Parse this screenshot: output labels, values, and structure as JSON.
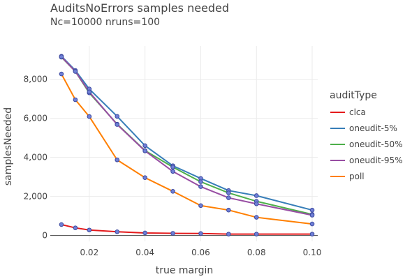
{
  "chart_data": {
    "type": "line",
    "title": "AuditsNoErrors samples needed",
    "subtitle": "Nc=10000 nruns=100",
    "xlabel": "true margin",
    "ylabel": "samplesNeeded",
    "xlim": [
      0.006,
      0.102
    ],
    "ylim": [
      -300,
      9700
    ],
    "x_ticks": [
      0.02,
      0.04,
      0.06,
      0.08,
      0.1
    ],
    "x_tick_labels": [
      "0.02",
      "0.04",
      "0.06",
      "0.08",
      "0.10"
    ],
    "y_ticks": [
      0,
      2000,
      4000,
      6000,
      8000
    ],
    "y_tick_labels": [
      "0",
      "2,000",
      "4,000",
      "6,000",
      "8,000"
    ],
    "grid": true,
    "legend_title": "auditType",
    "legend_position": "right",
    "x": [
      0.01,
      0.015,
      0.02,
      0.03,
      0.04,
      0.05,
      0.06,
      0.07,
      0.08,
      0.1
    ],
    "series": [
      {
        "name": "clca",
        "color": "#e41a1c",
        "values": [
          560,
          390,
          280,
          190,
          130,
          110,
          100,
          70,
          70,
          70
        ]
      },
      {
        "name": "oneudit-5%",
        "color": "#377eb8",
        "values": [
          9180,
          8450,
          7500,
          6100,
          4600,
          3570,
          2920,
          2300,
          2040,
          1300
        ]
      },
      {
        "name": "oneudit-50%",
        "color": "#4daf4a",
        "values": [
          9130,
          8400,
          7300,
          5700,
          4350,
          3500,
          2750,
          2180,
          1750,
          1080
        ]
      },
      {
        "name": "oneudit-95%",
        "color": "#984ea3",
        "values": [
          9150,
          8400,
          7350,
          5680,
          4330,
          3280,
          2500,
          1930,
          1620,
          1040
        ]
      },
      {
        "name": "poll",
        "color": "#ff7f00",
        "values": [
          8270,
          6950,
          6090,
          3870,
          2960,
          2260,
          1530,
          1300,
          930,
          590
        ]
      }
    ]
  }
}
